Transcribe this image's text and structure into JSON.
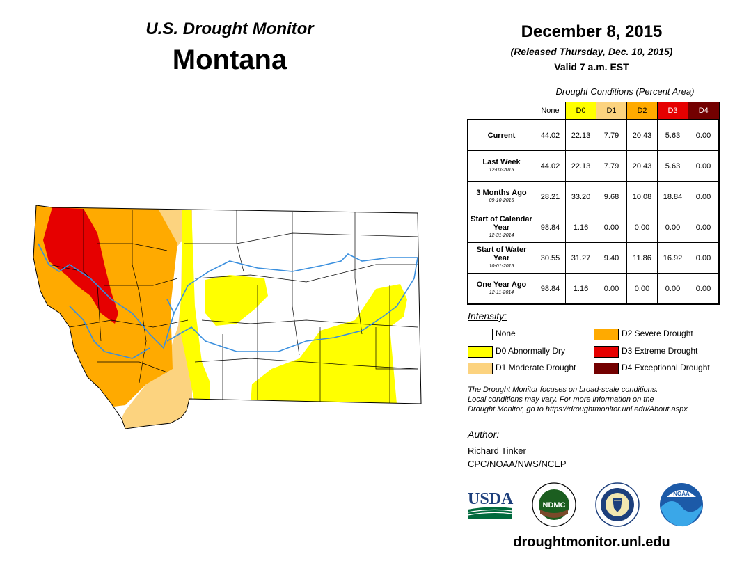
{
  "header": {
    "subtitle": "U.S. Drought Monitor",
    "state": "Montana",
    "date": "December 8, 2015",
    "released": "(Released Thursday, Dec. 10, 2015)",
    "valid": "Valid 7 a.m. EST"
  },
  "table": {
    "title": "Drought Conditions (Percent Area)",
    "columns": [
      "None",
      "D0",
      "D1",
      "D2",
      "D3",
      "D4"
    ],
    "column_colors": [
      "#ffffff",
      "#ffff00",
      "#fcd37f",
      "#ffaa00",
      "#e60000",
      "#730000"
    ],
    "rows": [
      {
        "label": "Current",
        "date": "",
        "values": [
          "44.02",
          "22.13",
          "7.79",
          "20.43",
          "5.63",
          "0.00"
        ]
      },
      {
        "label": "Last Week",
        "date": "12-03-2015",
        "values": [
          "44.02",
          "22.13",
          "7.79",
          "20.43",
          "5.63",
          "0.00"
        ]
      },
      {
        "label": "3 Months Ago",
        "date": "09-10-2015",
        "values": [
          "28.21",
          "33.20",
          "9.68",
          "10.08",
          "18.84",
          "0.00"
        ]
      },
      {
        "label": "Start of Calendar Year",
        "date": "12-31-2014",
        "values": [
          "98.84",
          "1.16",
          "0.00",
          "0.00",
          "0.00",
          "0.00"
        ]
      },
      {
        "label": "Start of Water Year",
        "date": "10-01-2015",
        "values": [
          "30.55",
          "31.27",
          "9.40",
          "11.86",
          "16.92",
          "0.00"
        ]
      },
      {
        "label": "One Year Ago",
        "date": "12-11-2014",
        "values": [
          "98.84",
          "1.16",
          "0.00",
          "0.00",
          "0.00",
          "0.00"
        ]
      }
    ]
  },
  "legend": {
    "title": "Intensity:",
    "items": [
      {
        "label": "None",
        "color": "#ffffff"
      },
      {
        "label": "D0 Abnormally Dry",
        "color": "#ffff00"
      },
      {
        "label": "D1 Moderate Drought",
        "color": "#fcd37f"
      },
      {
        "label": "D2 Severe Drought",
        "color": "#ffaa00"
      },
      {
        "label": "D3 Extreme Drought",
        "color": "#e60000"
      },
      {
        "label": "D4 Exceptional Drought",
        "color": "#730000"
      }
    ]
  },
  "note": {
    "line1": "The Drought Monitor focuses on broad-scale conditions.",
    "line2": "Local conditions may vary. For more information on the",
    "line3": "Drought Monitor, go to https://droughtmonitor.unl.edu/About.aspx"
  },
  "author": {
    "title": "Author:",
    "name": "Richard Tinker",
    "org": "CPC/NOAA/NWS/NCEP"
  },
  "logos": {
    "usda": "USDA",
    "ndmc": "NDMC",
    "noaa": "NOAA"
  },
  "footer": {
    "url": "droughtmonitor.unl.edu"
  },
  "colors": {
    "river": "#3a8fde",
    "county_line": "#000000"
  }
}
